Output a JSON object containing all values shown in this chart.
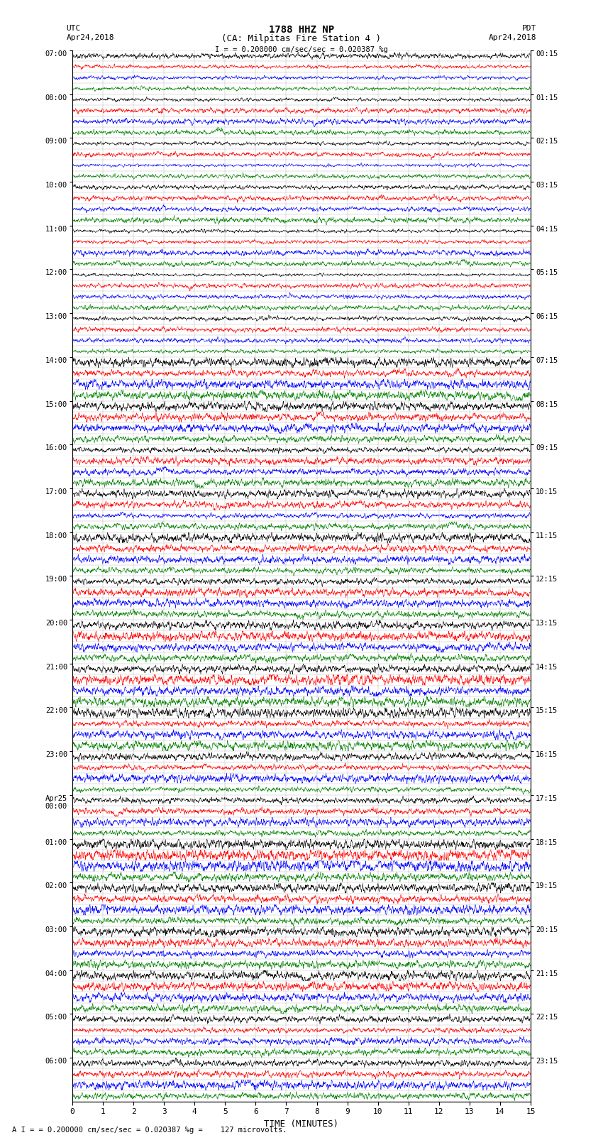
{
  "title_line1": "1788 HHZ NP",
  "title_line2": "(CA: Milpitas Fire Station 4 )",
  "left_header_line1": "UTC",
  "left_header_line2": "Apr24,2018",
  "right_header_line1": "PDT",
  "right_header_line2": "Apr24,2018",
  "scale_text": "= 0.200000 cm/sec/sec = 0.020387 %g",
  "bottom_annotation": "= 0.200000 cm/sec/sec = 0.020387 %g =    127 microvolts.",
  "xlabel": "TIME (MINUTES)",
  "xmin": 0,
  "xmax": 15,
  "left_labels_utc": [
    "07:00",
    "08:00",
    "09:00",
    "10:00",
    "11:00",
    "12:00",
    "13:00",
    "14:00",
    "15:00",
    "16:00",
    "17:00",
    "18:00",
    "19:00",
    "20:00",
    "21:00",
    "22:00",
    "23:00",
    "Apr25\n00:00",
    "01:00",
    "02:00",
    "03:00",
    "04:00",
    "05:00",
    "06:00"
  ],
  "right_labels_pdt": [
    "00:15",
    "01:15",
    "02:15",
    "03:15",
    "04:15",
    "05:15",
    "06:15",
    "07:15",
    "08:15",
    "09:15",
    "10:15",
    "11:15",
    "12:15",
    "13:15",
    "14:15",
    "15:15",
    "16:15",
    "17:15",
    "18:15",
    "19:15",
    "20:15",
    "21:15",
    "22:15",
    "23:15"
  ],
  "n_hours": 24,
  "traces_per_hour": 4,
  "trace_color_cycle": [
    "black",
    "red",
    "blue",
    "green"
  ],
  "background_color": "white",
  "noise_seed": 42,
  "grid_color": "#bbbbbb",
  "vgrid_color": "#aaaaaa"
}
